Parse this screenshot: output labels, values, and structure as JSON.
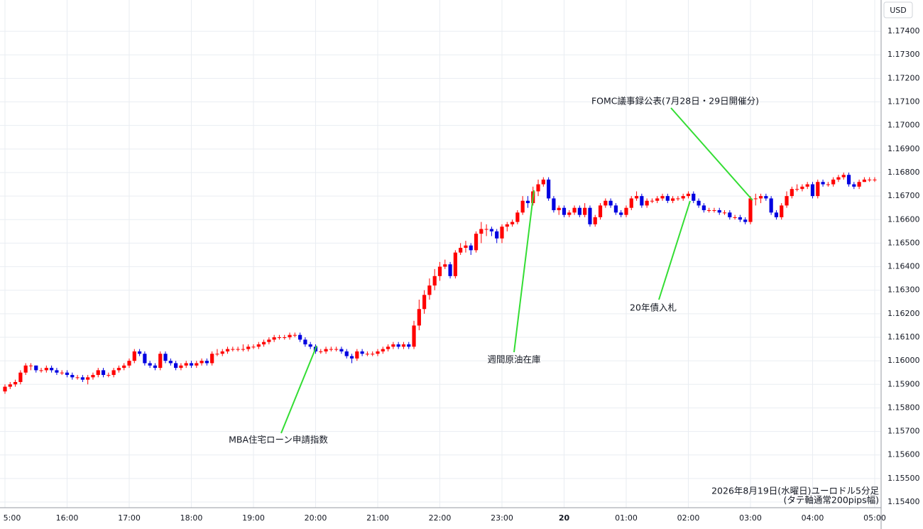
{
  "chart_data": {
    "type": "candlestick",
    "currency": "USD",
    "note": [
      "2026年8月19日(水曜日)ユーロドル5分足",
      "(タテ軸通常200pips幅)"
    ],
    "up_color": "#ff0000",
    "down_color": "#0000e0",
    "grid": true,
    "xlim": [
      -0.96,
      169.1
    ],
    "ylim": [
      1.15376,
      1.17533
    ],
    "xticks": [
      {
        "value": 0,
        "label": "5:00"
      },
      {
        "value": 12,
        "label": "16:00"
      },
      {
        "value": 24,
        "label": "17:00"
      },
      {
        "value": 36,
        "label": "18:00"
      },
      {
        "value": 48,
        "label": "19:00"
      },
      {
        "value": 60,
        "label": "20:00"
      },
      {
        "value": 72,
        "label": "21:00"
      },
      {
        "value": 84,
        "label": "22:00"
      },
      {
        "value": 96,
        "label": "23:00"
      },
      {
        "value": 108,
        "label": "20"
      },
      {
        "value": 120,
        "label": "01:00"
      },
      {
        "value": 132,
        "label": "02:00"
      },
      {
        "value": 144,
        "label": "03:00"
      },
      {
        "value": 156,
        "label": "04:00"
      },
      {
        "value": 168,
        "label": "05:00"
      }
    ],
    "yticks": [
      {
        "value": 1.154,
        "label": "1.15400"
      },
      {
        "value": 1.155,
        "label": "1.15500"
      },
      {
        "value": 1.156,
        "label": "1.15600"
      },
      {
        "value": 1.157,
        "label": "1.15700"
      },
      {
        "value": 1.158,
        "label": "1.15800"
      },
      {
        "value": 1.159,
        "label": "1.15900"
      },
      {
        "value": 1.16,
        "label": "1.16000"
      },
      {
        "value": 1.161,
        "label": "1.16100"
      },
      {
        "value": 1.162,
        "label": "1.16200"
      },
      {
        "value": 1.163,
        "label": "1.16300"
      },
      {
        "value": 1.164,
        "label": "1.16400"
      },
      {
        "value": 1.165,
        "label": "1.16500"
      },
      {
        "value": 1.166,
        "label": "1.16600"
      },
      {
        "value": 1.167,
        "label": "1.16700"
      },
      {
        "value": 1.168,
        "label": "1.16800"
      },
      {
        "value": 1.169,
        "label": "1.16900"
      },
      {
        "value": 1.17,
        "label": "1.17000"
      },
      {
        "value": 1.171,
        "label": "1.17100"
      },
      {
        "value": 1.172,
        "label": "1.17200"
      },
      {
        "value": 1.173,
        "label": "1.17300"
      },
      {
        "value": 1.174,
        "label": "1.17400"
      }
    ],
    "annotations": [
      "MBA住宅ローン申請指数",
      "週間原油在庫",
      "20年債入札",
      "FOMC議事録公表(7月28日・29日開催分)"
    ],
    "open": [
      1.1587,
      1.1589,
      1.159,
      1.1591,
      1.1595,
      1.1598,
      1.1598,
      1.1596,
      1.1596,
      1.1597,
      1.1596,
      1.1595,
      1.1595,
      1.1594,
      1.1593,
      1.1593,
      1.1592,
      1.1593,
      1.1594,
      1.1596,
      1.1594,
      1.1594,
      1.1596,
      1.1597,
      1.1598,
      1.16,
      1.1604,
      1.1603,
      1.1599,
      1.1598,
      1.1597,
      1.1603,
      1.16,
      1.1599,
      1.1597,
      1.1598,
      1.1599,
      1.1598,
      1.1599,
      1.16,
      1.1599,
      1.1603,
      1.1603,
      1.1604,
      1.1605,
      1.1605,
      1.1605,
      1.1605,
      1.1606,
      1.1606,
      1.1607,
      1.1608,
      1.1609,
      1.161,
      1.161,
      1.161,
      1.1611,
      1.1611,
      1.1609,
      1.1607,
      1.1606,
      1.1604,
      1.1604,
      1.1605,
      1.1605,
      1.1605,
      1.1604,
      1.1602,
      1.1601,
      1.1604,
      1.1603,
      1.1603,
      1.1603,
      1.1604,
      1.1605,
      1.1606,
      1.1607,
      1.1606,
      1.1607,
      1.1606,
      1.1615,
      1.1622,
      1.1628,
      1.1632,
      1.1636,
      1.164,
      1.1641,
      1.1636,
      1.1646,
      1.1648,
      1.1649,
      1.1647,
      1.1654,
      1.1656,
      1.1656,
      1.1655,
      1.1652,
      1.1657,
      1.1658,
      1.1659,
      1.1663,
      1.1668,
      1.1667,
      1.1672,
      1.1675,
      1.1677,
      1.1669,
      1.1664,
      1.1665,
      1.1662,
      1.1663,
      1.1665,
      1.1662,
      1.1665,
      1.1658,
      1.1661,
      1.1666,
      1.1668,
      1.1666,
      1.1663,
      1.1662,
      1.1665,
      1.1669,
      1.167,
      1.1666,
      1.1668,
      1.1668,
      1.1669,
      1.167,
      1.1668,
      1.1669,
      1.1669,
      1.167,
      1.1671,
      1.1668,
      1.1666,
      1.1664,
      1.1664,
      1.1664,
      1.1663,
      1.1663,
      1.1661,
      1.1661,
      1.166,
      1.1659,
      1.1669,
      1.1669,
      1.167,
      1.1669,
      1.1663,
      1.1661,
      1.1666,
      1.167,
      1.1673,
      1.1673,
      1.1674,
      1.1675,
      1.167,
      1.1676,
      1.1675,
      1.1675,
      1.1677,
      1.1678,
      1.1679,
      1.1675,
      1.1674,
      1.1676,
      1.1677,
      1.1677
    ],
    "high": [
      1.159,
      1.1591,
      1.1592,
      1.1596,
      1.1599,
      1.1599,
      1.1598,
      1.1597,
      1.1598,
      1.1598,
      1.1597,
      1.1596,
      1.1596,
      1.1595,
      1.1594,
      1.1594,
      1.1594,
      1.1595,
      1.1597,
      1.1597,
      1.1595,
      1.1597,
      1.1598,
      1.1599,
      1.1601,
      1.1605,
      1.1605,
      1.1604,
      1.16,
      1.1599,
      1.1604,
      1.1604,
      1.1601,
      1.16,
      1.1599,
      1.16,
      1.16,
      1.16,
      1.1601,
      1.1601,
      1.1604,
      1.1605,
      1.1605,
      1.1606,
      1.1606,
      1.1606,
      1.1607,
      1.1607,
      1.1607,
      1.1608,
      1.1609,
      1.161,
      1.1611,
      1.1611,
      1.1611,
      1.1612,
      1.1612,
      1.1612,
      1.161,
      1.1608,
      1.1607,
      1.1605,
      1.1606,
      1.1606,
      1.1606,
      1.1606,
      1.1605,
      1.1603,
      1.1605,
      1.1605,
      1.1604,
      1.1604,
      1.1605,
      1.1606,
      1.1607,
      1.1608,
      1.1608,
      1.1608,
      1.1608,
      1.1617,
      1.1626,
      1.163,
      1.1635,
      1.1639,
      1.1642,
      1.1643,
      1.1642,
      1.1647,
      1.165,
      1.1651,
      1.165,
      1.1655,
      1.1659,
      1.1658,
      1.1657,
      1.1656,
      1.1658,
      1.1659,
      1.166,
      1.1664,
      1.167,
      1.167,
      1.1674,
      1.1677,
      1.1678,
      1.1678,
      1.167,
      1.1666,
      1.1666,
      1.1664,
      1.1666,
      1.1666,
      1.1667,
      1.1666,
      1.1662,
      1.1667,
      1.1669,
      1.1669,
      1.1667,
      1.1664,
      1.1666,
      1.167,
      1.1672,
      1.1671,
      1.1669,
      1.1669,
      1.167,
      1.1671,
      1.1671,
      1.167,
      1.167,
      1.1671,
      1.1672,
      1.1672,
      1.1669,
      1.1667,
      1.1665,
      1.1665,
      1.1665,
      1.1664,
      1.1664,
      1.1662,
      1.1662,
      1.1661,
      1.167,
      1.1671,
      1.1671,
      1.1671,
      1.167,
      1.1664,
      1.1667,
      1.1672,
      1.1674,
      1.1675,
      1.1675,
      1.1676,
      1.1676,
      1.1677,
      1.1677,
      1.1676,
      1.1678,
      1.1679,
      1.168,
      1.168,
      1.1676,
      1.1677,
      1.1678,
      1.1678,
      1.1678
    ],
    "low": [
      1.1586,
      1.1588,
      1.1589,
      1.159,
      1.1594,
      1.1596,
      1.1595,
      1.1595,
      1.1595,
      1.1595,
      1.1594,
      1.1594,
      1.1593,
      1.1592,
      1.1592,
      1.1591,
      1.159,
      1.1592,
      1.1593,
      1.1593,
      1.1593,
      1.1593,
      1.1595,
      1.1596,
      1.1597,
      1.1599,
      1.1602,
      1.1598,
      1.1597,
      1.1596,
      1.1596,
      1.1599,
      1.1598,
      1.1596,
      1.1596,
      1.1597,
      1.1597,
      1.1597,
      1.1598,
      1.1598,
      1.1598,
      1.1602,
      1.1602,
      1.1603,
      1.1604,
      1.1604,
      1.1604,
      1.1604,
      1.1605,
      1.1605,
      1.1606,
      1.1607,
      1.1608,
      1.1609,
      1.1609,
      1.1609,
      1.161,
      1.1608,
      1.1606,
      1.1605,
      1.1603,
      1.1603,
      1.1603,
      1.1604,
      1.1604,
      1.1603,
      1.1601,
      1.1599,
      1.16,
      1.1602,
      1.1602,
      1.1602,
      1.1602,
      1.1603,
      1.1604,
      1.1605,
      1.1605,
      1.1605,
      1.1605,
      1.1605,
      1.1613,
      1.162,
      1.1626,
      1.163,
      1.1634,
      1.1639,
      1.1635,
      1.1635,
      1.1645,
      1.1646,
      1.1645,
      1.1646,
      1.165,
      1.1653,
      1.1653,
      1.165,
      1.165,
      1.1655,
      1.1657,
      1.1658,
      1.1662,
      1.1665,
      1.1666,
      1.167,
      1.1674,
      1.1668,
      1.1663,
      1.1662,
      1.1661,
      1.1661,
      1.1662,
      1.1661,
      1.1661,
      1.1657,
      1.1657,
      1.166,
      1.1665,
      1.1665,
      1.1662,
      1.1661,
      1.1661,
      1.1664,
      1.1668,
      1.1665,
      1.1665,
      1.1667,
      1.1667,
      1.1668,
      1.1667,
      1.1667,
      1.1668,
      1.1668,
      1.1669,
      1.1667,
      1.1665,
      1.1663,
      1.1663,
      1.1663,
      1.1662,
      1.1662,
      1.166,
      1.166,
      1.1659,
      1.1658,
      1.1658,
      1.1666,
      1.1667,
      1.1668,
      1.1662,
      1.166,
      1.166,
      1.1665,
      1.1669,
      1.1672,
      1.1672,
      1.1673,
      1.1669,
      1.1669,
      1.1674,
      1.1674,
      1.1674,
      1.1676,
      1.1677,
      1.1674,
      1.1673,
      1.1673,
      1.1676,
      1.1676,
      1.1676
    ],
    "close": [
      1.1589,
      1.159,
      1.1591,
      1.1595,
      1.1598,
      1.1598,
      1.1596,
      1.1596,
      1.1597,
      1.1596,
      1.1595,
      1.1595,
      1.1594,
      1.1593,
      1.1593,
      1.1592,
      1.1593,
      1.1594,
      1.1596,
      1.1594,
      1.1594,
      1.1596,
      1.1597,
      1.1598,
      1.16,
      1.1604,
      1.1603,
      1.1599,
      1.1598,
      1.1597,
      1.1603,
      1.16,
      1.1599,
      1.1597,
      1.1598,
      1.1599,
      1.1598,
      1.1599,
      1.16,
      1.1599,
      1.1603,
      1.1603,
      1.1604,
      1.1605,
      1.1605,
      1.1605,
      1.1605,
      1.1606,
      1.1606,
      1.1607,
      1.1608,
      1.1609,
      1.161,
      1.161,
      1.161,
      1.1611,
      1.1611,
      1.1609,
      1.1607,
      1.1606,
      1.1604,
      1.1604,
      1.1605,
      1.1605,
      1.1605,
      1.1604,
      1.1602,
      1.1601,
      1.1604,
      1.1603,
      1.1603,
      1.1603,
      1.1604,
      1.1605,
      1.1606,
      1.1607,
      1.1606,
      1.1607,
      1.1606,
      1.1615,
      1.1622,
      1.1628,
      1.1632,
      1.1636,
      1.164,
      1.1641,
      1.1636,
      1.1646,
      1.1648,
      1.1649,
      1.1647,
      1.1654,
      1.1656,
      1.1656,
      1.1655,
      1.1652,
      1.1657,
      1.1658,
      1.1659,
      1.1663,
      1.1668,
      1.1667,
      1.1672,
      1.1675,
      1.1677,
      1.1669,
      1.1664,
      1.1665,
      1.1662,
      1.1663,
      1.1665,
      1.1662,
      1.1665,
      1.1658,
      1.1661,
      1.1666,
      1.1668,
      1.1666,
      1.1663,
      1.1662,
      1.1665,
      1.1669,
      1.167,
      1.1666,
      1.1668,
      1.1668,
      1.1669,
      1.167,
      1.1668,
      1.1669,
      1.1669,
      1.167,
      1.1671,
      1.1668,
      1.1666,
      1.1664,
      1.1664,
      1.1664,
      1.1663,
      1.1663,
      1.1661,
      1.1661,
      1.166,
      1.1659,
      1.1669,
      1.1669,
      1.167,
      1.1669,
      1.1663,
      1.1661,
      1.1666,
      1.167,
      1.1673,
      1.1673,
      1.1674,
      1.1675,
      1.167,
      1.1676,
      1.1675,
      1.1675,
      1.1677,
      1.1678,
      1.1679,
      1.1675,
      1.1674,
      1.1676,
      1.1677,
      1.1677,
      1.1677
    ]
  }
}
